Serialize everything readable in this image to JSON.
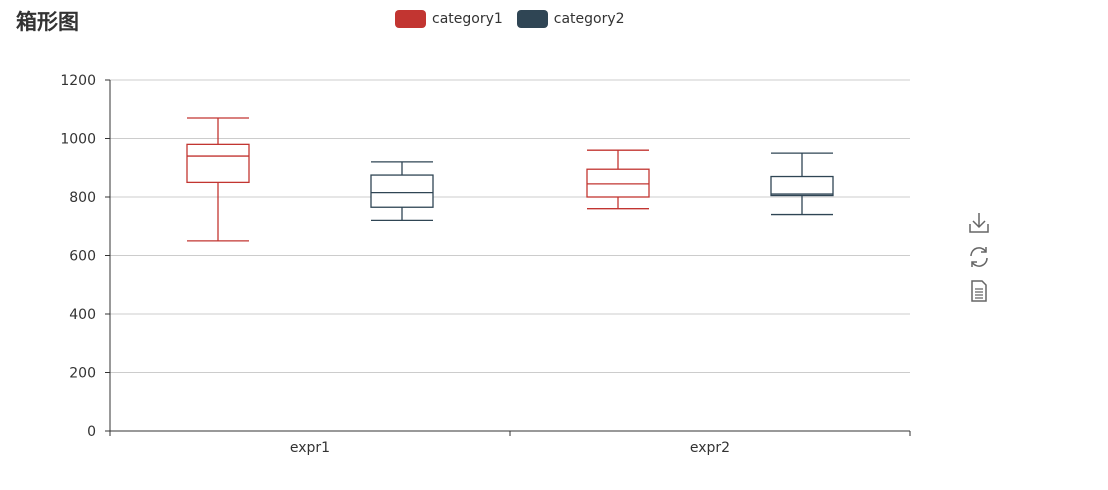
{
  "title": "箱形图",
  "legend": [
    {
      "name": "category1",
      "color": "#c23531"
    },
    {
      "name": "category2",
      "color": "#2f4554"
    }
  ],
  "toolbox": [
    {
      "icon": "download-icon"
    },
    {
      "icon": "refresh-icon"
    },
    {
      "icon": "data-view-icon"
    }
  ],
  "chart_data": {
    "type": "boxplot",
    "title": "箱形图",
    "categories": [
      "expr1",
      "expr2"
    ],
    "ylim": [
      0,
      1200
    ],
    "yticks": [
      0,
      200,
      400,
      600,
      800,
      1000,
      1200
    ],
    "grid": true,
    "legend_position": "top-center",
    "series": [
      {
        "name": "category1",
        "color": "#c23531",
        "boxes": [
          {
            "min": 650,
            "q1": 850,
            "median": 940,
            "q3": 980,
            "max": 1070
          },
          {
            "min": 760,
            "q1": 800,
            "median": 845,
            "q3": 895,
            "max": 960
          }
        ]
      },
      {
        "name": "category2",
        "color": "#2f4554",
        "boxes": [
          {
            "min": 720,
            "q1": 765,
            "median": 815,
            "q3": 875,
            "max": 920
          },
          {
            "min": 740,
            "q1": 805,
            "median": 810,
            "q3": 870,
            "max": 950
          }
        ]
      }
    ]
  }
}
